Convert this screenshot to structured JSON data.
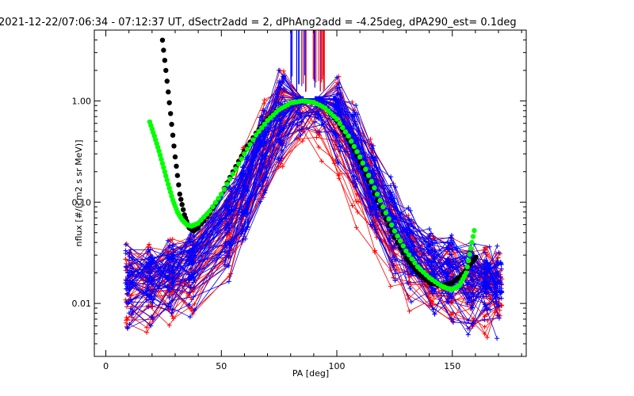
{
  "chart_data": {
    "type": "line",
    "title": "2021-12-22/07:06:34 - 07:12:37 UT, dSectr2add = 2, dPhAng2add = -4.25deg, dPA290_est=   0.1deg",
    "xlabel": "PA [deg]",
    "ylabel": "nflux [#/(cm2 s sr MeV)]",
    "xlim": [
      -5,
      182
    ],
    "ylim": [
      0.003,
      5.0
    ],
    "yscale": "log",
    "grid": false,
    "x_ticks": [
      {
        "value": 0,
        "label": "0"
      },
      {
        "value": 50,
        "label": "50"
      },
      {
        "value": 100,
        "label": "100"
      },
      {
        "value": 150,
        "label": "150"
      }
    ],
    "y_ticks": [
      {
        "value": 0.01,
        "label": "0.01"
      },
      {
        "value": 0.1,
        "label": "0.10"
      },
      {
        "value": 1.0,
        "label": "1.00"
      }
    ],
    "colors": {
      "red_traces": "#ff0000",
      "blue_traces": "#0000ff",
      "black_fit": "#000000",
      "green_fit": "#00ff00"
    },
    "series": [
      {
        "color": "#000000",
        "style": "thick-dots",
        "x": [
          24,
          26,
          28,
          30,
          32,
          34,
          36,
          38,
          40,
          45,
          50,
          55,
          60,
          65,
          70,
          75,
          80,
          85,
          90,
          95,
          100,
          105,
          110,
          115,
          120,
          125,
          130,
          135,
          140,
          145,
          150,
          155,
          158,
          161
        ],
        "y": [
          5.0,
          2.0,
          0.75,
          0.28,
          0.12,
          0.075,
          0.056,
          0.052,
          0.056,
          0.078,
          0.12,
          0.2,
          0.32,
          0.48,
          0.66,
          0.83,
          0.95,
          1.0,
          0.97,
          0.85,
          0.64,
          0.42,
          0.25,
          0.14,
          0.078,
          0.045,
          0.028,
          0.02,
          0.016,
          0.015,
          0.016,
          0.02,
          0.025,
          0.03
        ]
      },
      {
        "color": "#00ff00",
        "style": "thick-dots",
        "x": [
          19,
          21,
          23,
          25,
          27,
          29,
          31,
          33,
          35,
          37,
          40,
          45,
          50,
          55,
          60,
          65,
          70,
          75,
          80,
          85,
          90,
          95,
          100,
          105,
          110,
          115,
          120,
          125,
          130,
          135,
          140,
          145,
          148,
          150,
          153,
          156,
          158,
          160
        ],
        "y": [
          0.62,
          0.45,
          0.32,
          0.22,
          0.15,
          0.105,
          0.08,
          0.067,
          0.06,
          0.058,
          0.062,
          0.082,
          0.12,
          0.19,
          0.3,
          0.46,
          0.64,
          0.82,
          0.95,
          1.0,
          0.97,
          0.85,
          0.66,
          0.45,
          0.28,
          0.16,
          0.09,
          0.052,
          0.033,
          0.023,
          0.018,
          0.015,
          0.014,
          0.0138,
          0.015,
          0.02,
          0.035,
          0.06
        ]
      }
    ]
  }
}
